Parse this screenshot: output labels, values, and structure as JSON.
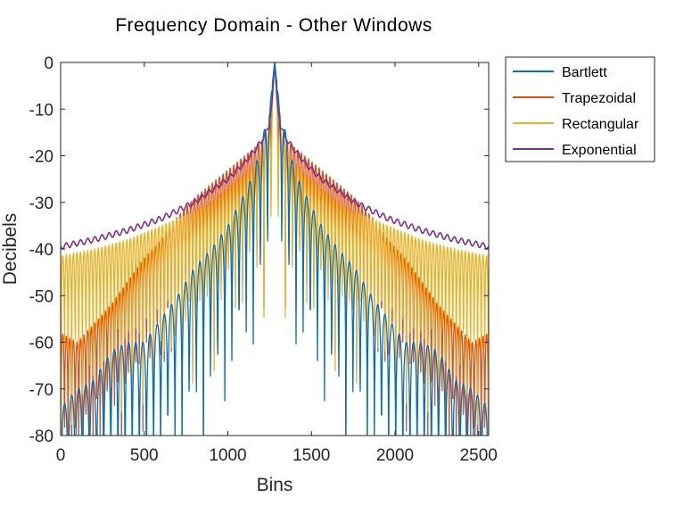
{
  "chart_data": {
    "type": "line",
    "title": "Frequency Domain - Other Windows",
    "xlabel": "Bins",
    "ylabel": "Decibels",
    "xlim": [
      0,
      2560
    ],
    "ylim": [
      -80,
      0
    ],
    "xticks": [
      0,
      500,
      1000,
      1500,
      2000,
      2500
    ],
    "yticks": [
      0,
      -10,
      -20,
      -30,
      -40,
      -50,
      -60,
      -70,
      -80
    ],
    "xtick_labels": [
      "0",
      "500",
      "1000",
      "1500",
      "2000",
      "2500"
    ],
    "ytick_labels": [
      "0",
      "-10",
      "-20",
      "-30",
      "-40",
      "-50",
      "-60",
      "-70",
      "-80"
    ],
    "legend_position": "outside-top-right",
    "peak_bin": 1280,
    "series": [
      {
        "name": "Bartlett",
        "color": "#0072BD",
        "description": "envelope of oscillating spectrum (lobe peaks), nulls fall below -80",
        "x": [
          0,
          100,
          200,
          300,
          400,
          500,
          600,
          700,
          800,
          900,
          1000,
          1100,
          1150,
          1200,
          1230,
          1250,
          1265,
          1280,
          1295,
          1310,
          1330,
          1360,
          1410,
          1460,
          1560,
          1660,
          1760,
          1860,
          1960,
          2060,
          2160,
          2260,
          2360,
          2460,
          2560
        ],
        "values": [
          -74,
          -70,
          -68,
          -62,
          -60,
          -60,
          -55,
          -50,
          -44,
          -40,
          -35,
          -28,
          -24,
          -18,
          -12,
          -10,
          -5,
          0,
          -5,
          -10,
          -12,
          -18,
          -24,
          -28,
          -35,
          -40,
          -44,
          -50,
          -55,
          -60,
          -60,
          -62,
          -68,
          -70,
          -74
        ]
      },
      {
        "name": "Trapezoidal",
        "color": "#D95319",
        "description": "envelope of oscillating spectrum (lobe peaks), nulls fall below -80",
        "x": [
          0,
          100,
          200,
          300,
          400,
          500,
          600,
          700,
          800,
          900,
          1000,
          1100,
          1200,
          1240,
          1280,
          1320,
          1360,
          1460,
          1560,
          1660,
          1760,
          1860,
          1960,
          2060,
          2160,
          2260,
          2360,
          2460,
          2560
        ],
        "values": [
          -58,
          -60,
          -56,
          -52,
          -47,
          -42,
          -38,
          -33,
          -29,
          -26,
          -23,
          -20,
          -17,
          -14,
          0,
          -14,
          -17,
          -20,
          -23,
          -26,
          -29,
          -33,
          -38,
          -42,
          -47,
          -52,
          -56,
          -60,
          -58
        ]
      },
      {
        "name": "Rectangular",
        "color": "#EDB120",
        "description": "envelope of oscillating sidelobes, nulls fall below -80",
        "x": [
          0,
          200,
          400,
          600,
          800,
          900,
          1000,
          1100,
          1180,
          1230,
          1260,
          1280,
          1300,
          1330,
          1380,
          1460,
          1560,
          1660,
          1760,
          1960,
          2160,
          2360,
          2560
        ],
        "values": [
          -41.5,
          -40,
          -38,
          -35,
          -32,
          -30,
          -27,
          -24,
          -21,
          -17,
          -13,
          0,
          -13,
          -17,
          -21,
          -24,
          -27,
          -30,
          -32,
          -35,
          -38,
          -40,
          -41.5
        ]
      },
      {
        "name": "Exponential",
        "color": "#7E2F8E",
        "description": "smooth envelope with small ripple",
        "x": [
          0,
          200,
          400,
          600,
          800,
          1000,
          1100,
          1200,
          1230,
          1250,
          1265,
          1280,
          1295,
          1310,
          1330,
          1360,
          1460,
          1560,
          1760,
          1960,
          2160,
          2360,
          2560
        ],
        "values": [
          -39.5,
          -38,
          -36,
          -33.5,
          -30,
          -25,
          -21.5,
          -17,
          -15,
          -13,
          -8,
          0,
          -8,
          -13,
          -15,
          -17,
          -21.5,
          -25,
          -30,
          -33.5,
          -36,
          -38,
          -39.5
        ]
      }
    ]
  }
}
